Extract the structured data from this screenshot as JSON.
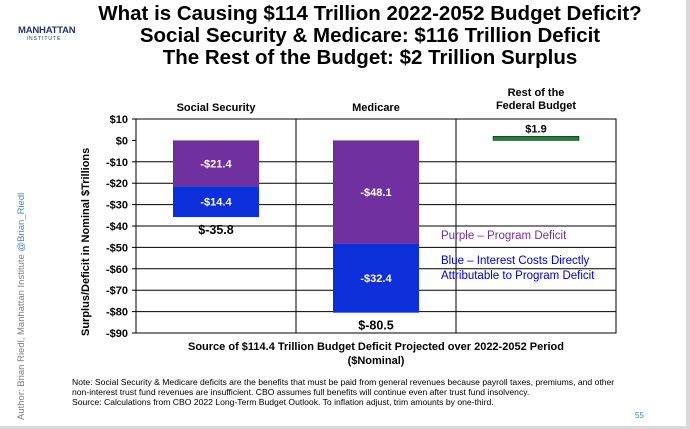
{
  "slide": {
    "title_lines": [
      "What is Causing $114 Trillion 2022-2052 Budget Deficit?",
      "Social Security & Medicare: $116 Trillion Deficit",
      "The Rest of the Budget: $2 Trillion Surplus"
    ],
    "logo_line1": "MANHATTAN",
    "logo_line2": "INSTITUTE",
    "author_text": "Author: Brian Riedl, Manhattan Institute",
    "author_handle": "@Brian_Riedl",
    "note": "Note: Social Security & Medicare deficits are the benefits that must be paid from general revenues because payroll taxes, premiums, and other non-interest trust fund revenues are insufficient. CBO assumes full benefits will continue even after trust fund insolvency.",
    "source": "Source: Calculations from CBO 2022 Long-Term Budget Outlook. To inflation adjust, trim amounts by one-third.",
    "page_number": "55",
    "colors": {
      "purple": "#7030a0",
      "blue": "#0c2fd9",
      "green": "#0f8a2f",
      "text_purple": "#7030a0",
      "text_blue": "#0000cc"
    }
  },
  "chart_data": {
    "type": "bar",
    "stacked": true,
    "categories": [
      "Social Security",
      "Medicare",
      "Rest of the Federal Budget"
    ],
    "category_label_lines": [
      [
        "Social Security"
      ],
      [
        "Medicare"
      ],
      [
        "Rest of the",
        "Federal Budget"
      ]
    ],
    "series": [
      {
        "name": "Purple – Program Deficit",
        "color": "#7030a0",
        "values": [
          -21.4,
          -48.1,
          null
        ],
        "labels": [
          "-$21.4",
          "-$48.1",
          ""
        ]
      },
      {
        "name": "Blue – Interest Costs Directly Attributable to Program Deficit",
        "color": "#0c2fd9",
        "values": [
          -14.4,
          -32.4,
          null
        ],
        "labels": [
          "-$14.4",
          "-$32.4",
          ""
        ]
      },
      {
        "name": "Surplus",
        "color": "#0f8a2f",
        "values": [
          null,
          null,
          1.9
        ],
        "labels": [
          "",
          "",
          "$1.9"
        ]
      }
    ],
    "totals": [
      -35.8,
      -80.5,
      1.9
    ],
    "total_labels": [
      "$-35.8",
      "$-80.5",
      ""
    ],
    "legend_lines": [
      "Purple – Program Deficit",
      "Blue – Interest Costs Directly",
      "Attributable to Program Deficit"
    ],
    "ylabel": "Surplus/Deficit in Nominal $Trillions",
    "xlabel_lines": [
      "Source of $114.4 Trillion Budget Deficit Projected over 2022-2052 Period",
      "($Nominal)"
    ],
    "ylim": [
      -90,
      10
    ],
    "yticks": [
      10,
      0,
      -10,
      -20,
      -30,
      -40,
      -50,
      -60,
      -70,
      -80,
      -90
    ],
    "ytick_labels": [
      "$10",
      "$0",
      "-$10",
      "-$20",
      "-$30",
      "-$40",
      "-$50",
      "-$60",
      "-$70",
      "-$80",
      "-$90"
    ],
    "grid": true,
    "legend_position": "right"
  }
}
